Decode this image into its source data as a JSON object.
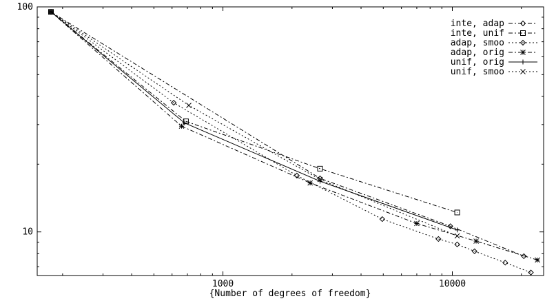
{
  "chart_data": {
    "type": "line",
    "xscale": "log",
    "yscale": "log",
    "xlim": [
      155,
      25000
    ],
    "ylim": [
      6.4,
      100
    ],
    "xlabel": "{Number of degrees of freedom}",
    "ylabel": "",
    "title": "",
    "grid": false,
    "legend": "top-right",
    "xticks": [
      {
        "value": 1000,
        "label": "1000"
      },
      {
        "value": 10000,
        "label": "10000"
      }
    ],
    "yticks": [
      {
        "value": 10,
        "label": "10"
      },
      {
        "value": 100,
        "label": "100"
      }
    ],
    "series": [
      {
        "name": "inte, adap",
        "marker": "diamond",
        "dash": "dashdot",
        "x": [
          178,
          2650,
          9800,
          20500
        ],
        "y": [
          95,
          17.3,
          10.6,
          7.8
        ]
      },
      {
        "name": "inte, unif",
        "marker": "square",
        "dash": "dashdot",
        "x": [
          178,
          690,
          2650,
          10500
        ],
        "y": [
          95,
          31,
          19.1,
          12.2
        ]
      },
      {
        "name": "adap, smoo",
        "marker": "diamond",
        "dash": "dot",
        "x": [
          178,
          610,
          2100,
          4950,
          8700,
          10500,
          12500,
          17000,
          22000
        ],
        "y": [
          95,
          37.5,
          17.8,
          11.4,
          9.3,
          8.8,
          8.2,
          7.3,
          6.6
        ]
      },
      {
        "name": "adap, orig",
        "marker": "star",
        "dash": "dashdot",
        "x": [
          178,
          660,
          2400,
          7000,
          12700,
          23500
        ],
        "y": [
          95,
          29.5,
          16.5,
          10.9,
          9.1,
          7.5
        ]
      },
      {
        "name": "unif, orig",
        "marker": "plus",
        "dash": "solid",
        "x": [
          178,
          680,
          2650,
          10500
        ],
        "y": [
          95,
          30.5,
          16.8,
          10.2
        ]
      },
      {
        "name": "unif, smoo",
        "marker": "cross",
        "dash": "dot",
        "x": [
          178,
          710,
          2650,
          10500
        ],
        "y": [
          95,
          36.5,
          17.1,
          9.6
        ]
      }
    ]
  }
}
